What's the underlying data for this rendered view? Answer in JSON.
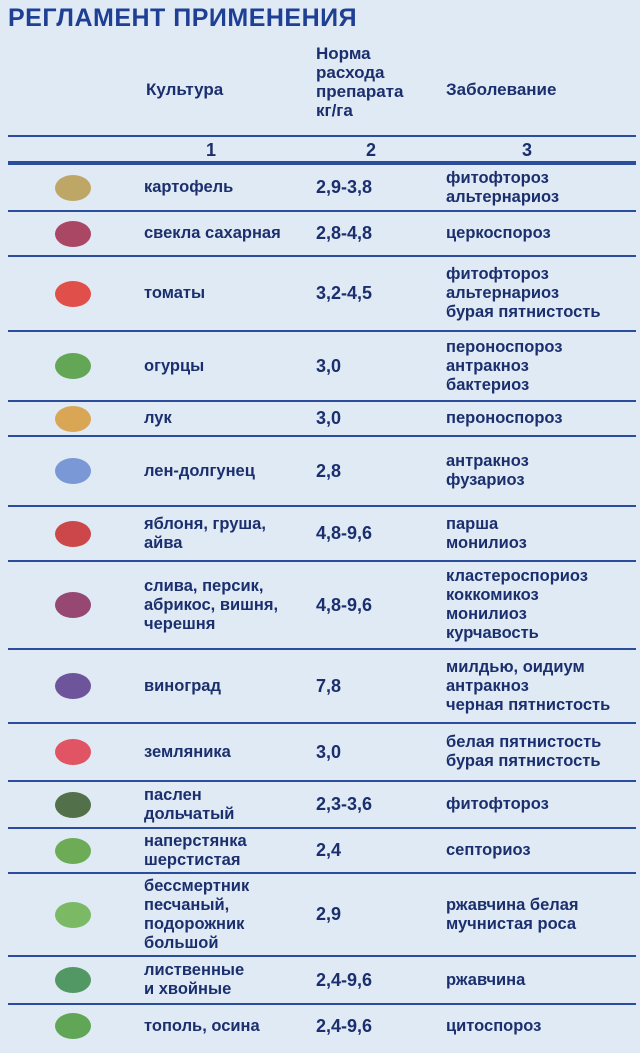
{
  "title": "РЕГЛАМЕНТ ПРИМЕНЕНИЯ",
  "header": {
    "culture": "Культура",
    "rate": [
      "Норма",
      "расхода",
      "препарата",
      "кг/га"
    ],
    "disease": "Заболевание"
  },
  "numbers": [
    "1",
    "2",
    "3"
  ],
  "rows": [
    {
      "culture": [
        "картофель"
      ],
      "rate": "2,9-3,8",
      "disease": [
        "фитофтороз",
        "альтернариоз"
      ]
    },
    {
      "culture": [
        "свекла сахарная"
      ],
      "rate": "2,8-4,8",
      "disease": [
        "церкоспороз"
      ]
    },
    {
      "culture": [
        "томаты"
      ],
      "rate": "3,2-4,5",
      "disease": [
        "фитофтороз",
        "альтернариоз",
        "бурая пятнистость"
      ]
    },
    {
      "culture": [
        "огурцы"
      ],
      "rate": "3,0",
      "disease": [
        "пероноспороз",
        "антракноз",
        "бактериоз"
      ]
    },
    {
      "culture": [
        "лук"
      ],
      "rate": "3,0",
      "disease": [
        "пероноспороз"
      ]
    },
    {
      "culture": [
        "лен-долгунец"
      ],
      "rate": "2,8",
      "disease": [
        "антракноз",
        "фузариоз"
      ]
    },
    {
      "culture": [
        "яблоня, груша,",
        "айва"
      ],
      "rate": "4,8-9,6",
      "disease": [
        "парша",
        "монилиоз"
      ]
    },
    {
      "culture": [
        "слива, персик,",
        "абрикос, вишня,",
        "черешня"
      ],
      "rate": "4,8-9,6",
      "disease": [
        "кластероспориоз",
        "коккомикоз",
        "монилиоз",
        "курчавость"
      ]
    },
    {
      "culture": [
        "виноград"
      ],
      "rate": "7,8",
      "disease": [
        "милдью, оидиум",
        "антракноз",
        "черная пятнистость"
      ]
    },
    {
      "culture": [
        "земляника"
      ],
      "rate": "3,0",
      "disease": [
        "белая пятнистость",
        "бурая пятнистость"
      ]
    },
    {
      "culture": [
        "паслен",
        "дольчатый"
      ],
      "rate": "2,3-3,6",
      "disease": [
        "фитофтороз"
      ]
    },
    {
      "culture": [
        "наперстянка",
        "шерстистая"
      ],
      "rate": "2,4",
      "disease": [
        "септориоз"
      ]
    },
    {
      "culture": [
        "бессмертник",
        "песчаный,",
        "подорожник",
        "большой"
      ],
      "rate": "2,9",
      "disease": [
        "ржавчина белая",
        "мучнистая роса"
      ]
    },
    {
      "culture": [
        "лиственные",
        "и хвойные"
      ],
      "rate": "2,4-9,6",
      "disease": [
        "ржавчина"
      ]
    },
    {
      "culture": [
        "тополь, осина"
      ],
      "rate": "2,4-9,6",
      "disease": [
        "цитоспороз"
      ]
    }
  ]
}
